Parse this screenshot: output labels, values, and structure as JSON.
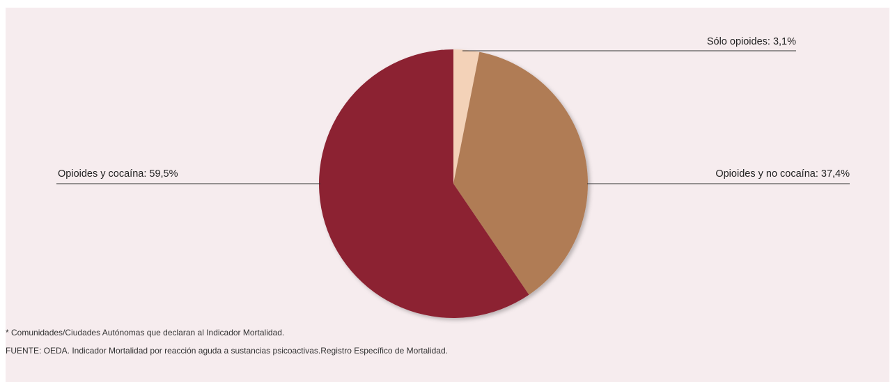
{
  "chart_data": {
    "type": "pie",
    "slices": [
      {
        "label": "Sólo opioides: 3,1%",
        "value": 3.1,
        "color": "#f3d2b8"
      },
      {
        "label": "Opioides y no cocaína: 37,4%",
        "value": 37.4,
        "color": "#b07b54"
      },
      {
        "label": "Opioides y cocaína: 59,5%",
        "value": 59.5,
        "color": "#8c2433"
      }
    ],
    "start": "12 o'clock",
    "direction": "clockwise"
  },
  "notes": {
    "footnote": "* Comunidades/Ciudades Autónomas que declaran al Indicador Mortalidad.",
    "source": "FUENTE: OEDA. Indicador Mortalidad por reacción aguda a sustancias psicoactivas.Registro Específico de Mortalidad."
  }
}
